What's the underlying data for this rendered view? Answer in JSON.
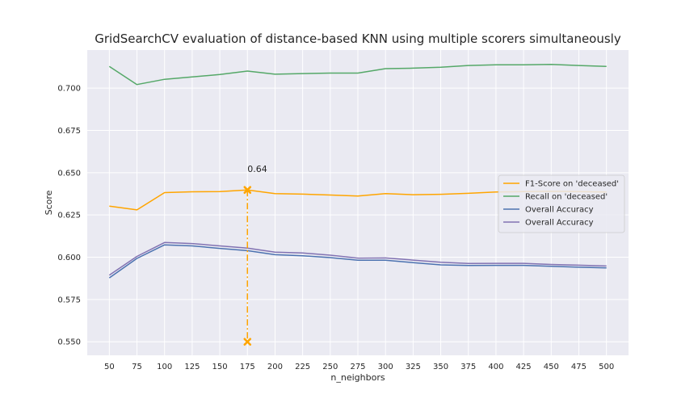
{
  "chart_data": {
    "type": "line",
    "title": "GridSearchCV evaluation of distance-based KNN using multiple scorers simultaneously",
    "xlabel": "n_neighbors",
    "ylabel": "Score",
    "x": [
      50,
      75,
      100,
      125,
      150,
      175,
      200,
      225,
      250,
      275,
      300,
      325,
      350,
      375,
      400,
      425,
      450,
      475,
      500
    ],
    "x_tick_labels": [
      "50",
      "75",
      "100",
      "125",
      "150",
      "175",
      "200",
      "225",
      "250",
      "275",
      "300",
      "325",
      "350",
      "375",
      "400",
      "425",
      "450",
      "475",
      "500"
    ],
    "xlim": [
      30,
      520
    ],
    "ylim": [
      0.542,
      0.7225
    ],
    "y_ticks": [
      0.55,
      0.575,
      0.6,
      0.625,
      0.65,
      0.675,
      0.7
    ],
    "y_tick_labels": [
      "0.550",
      "0.575",
      "0.600",
      "0.625",
      "0.650",
      "0.675",
      "0.700"
    ],
    "grid": true,
    "legend_position": "center-right",
    "series": [
      {
        "name": "F1-Score on 'deceased'",
        "color": "#ffa500",
        "values": [
          0.6302,
          0.628,
          0.6382,
          0.6387,
          0.6388,
          0.6398,
          0.6376,
          0.6373,
          0.6368,
          0.6362,
          0.6376,
          0.637,
          0.6372,
          0.6378,
          0.6386,
          0.6388,
          0.639,
          0.6388,
          0.6386
        ]
      },
      {
        "name": "Recall on 'deceased'",
        "color": "#55a868",
        "values": [
          0.7128,
          0.7021,
          0.7052,
          0.7066,
          0.7081,
          0.7101,
          0.7082,
          0.7086,
          0.7089,
          0.7089,
          0.7115,
          0.7118,
          0.7124,
          0.7134,
          0.7138,
          0.7138,
          0.714,
          0.7134,
          0.7128
        ]
      },
      {
        "name": "Overall Accuracy",
        "color": "#4c72b0",
        "values": [
          0.5878,
          0.5993,
          0.6073,
          0.6067,
          0.6052,
          0.6039,
          0.6015,
          0.6009,
          0.5998,
          0.5982,
          0.5982,
          0.5968,
          0.5955,
          0.5951,
          0.5952,
          0.5952,
          0.5946,
          0.5941,
          0.5937
        ]
      },
      {
        "name": "Overall Accuracy",
        "color": "#8172b2",
        "values": [
          0.5894,
          0.6005,
          0.6087,
          0.6081,
          0.6067,
          0.6054,
          0.603,
          0.6025,
          0.6012,
          0.5995,
          0.5996,
          0.5983,
          0.597,
          0.5963,
          0.5964,
          0.5964,
          0.5957,
          0.5953,
          0.5948
        ]
      }
    ],
    "annotations": [
      {
        "text": "0.64",
        "x": 175,
        "y": 0.6398,
        "baseline": 0.55,
        "color": "#ffa500"
      }
    ]
  }
}
